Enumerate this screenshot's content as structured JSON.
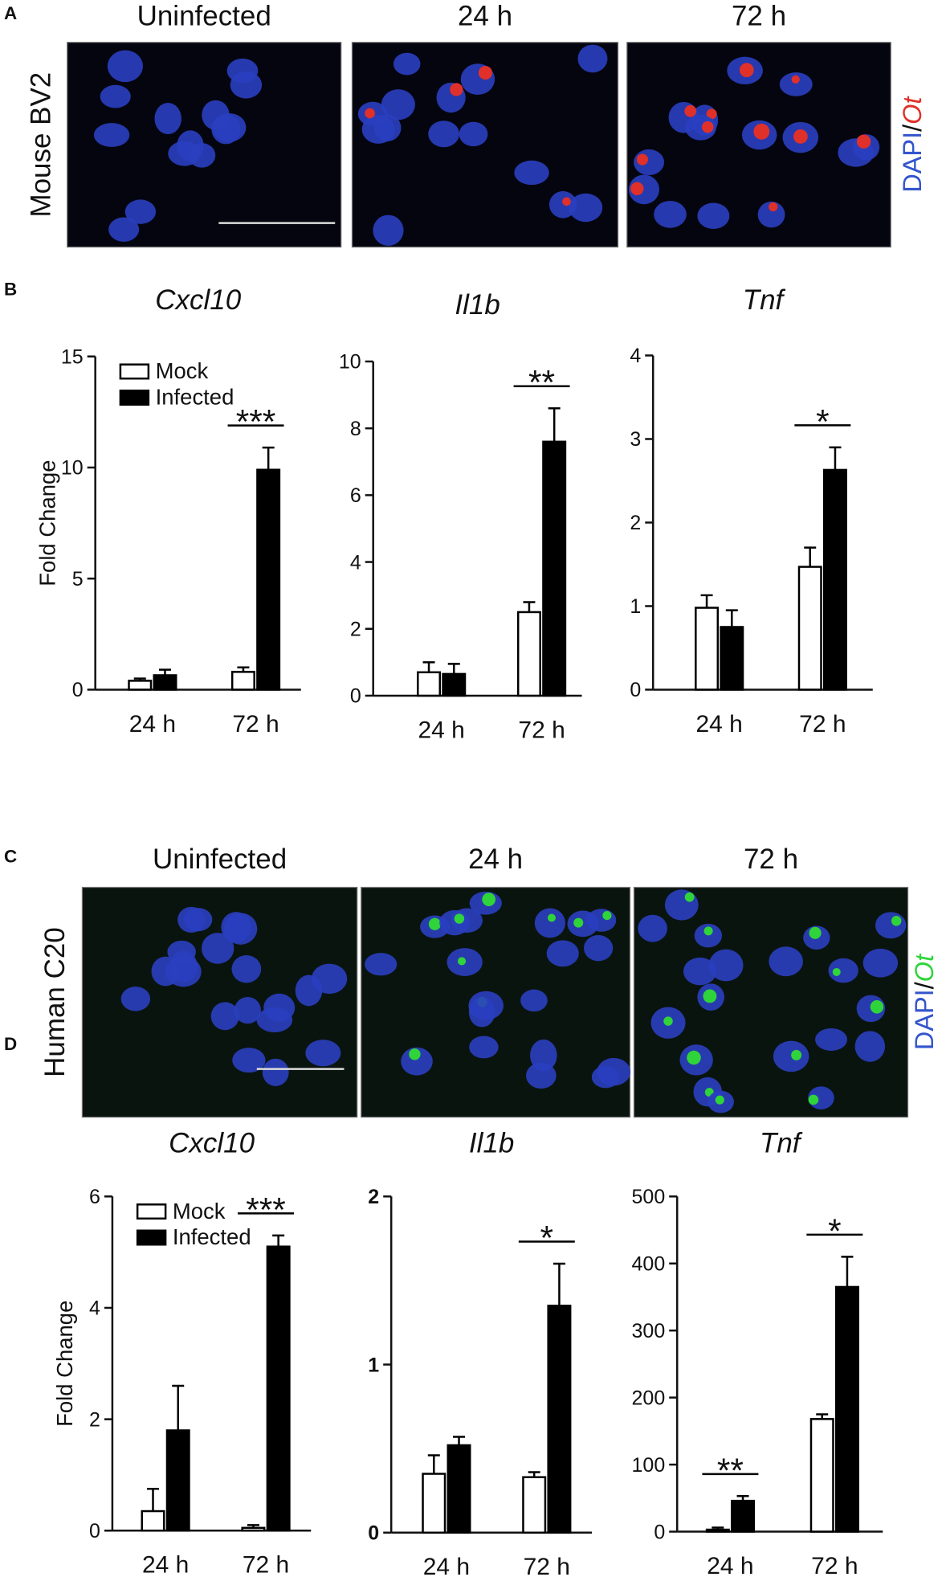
{
  "panels": {
    "A": {
      "letter": "A",
      "columns": [
        "Uninfected",
        "24 h",
        "72 h"
      ],
      "row_label": "Mouse BV2",
      "stain": [
        "DAPI",
        "/",
        "Ot"
      ]
    },
    "B": {
      "letter": "B"
    },
    "C": {
      "letter": "C",
      "columns": [
        "Uninfected",
        "24 h",
        "72 h"
      ],
      "row_label": "Human C20",
      "stain": [
        "DAPI",
        "/",
        "Ot"
      ]
    },
    "D": {
      "letter": "D"
    }
  },
  "chart_data": [
    {
      "type": "bar",
      "title": "Cxcl10",
      "y_label": "Fold Change",
      "categories": [
        "24 h",
        "72 h"
      ],
      "legend": "upper left",
      "series": [
        {
          "name": "Mock",
          "color": "#ffffff",
          "values": [
            0.4,
            0.8
          ],
          "errors": [
            0.1,
            0.2
          ]
        },
        {
          "name": "Infected",
          "color": "#000000",
          "values": [
            0.65,
            9.9
          ],
          "errors": [
            0.25,
            1.0
          ]
        }
      ],
      "ylim": [
        0,
        15
      ],
      "yticks": [
        0,
        5,
        10,
        15
      ],
      "significance": [
        null,
        "***"
      ]
    },
    {
      "type": "bar",
      "title": "Il1b",
      "categories": [
        "24 h",
        "72 h"
      ],
      "series": [
        {
          "color": "#ffffff",
          "values": [
            0.7,
            2.5
          ],
          "errors": [
            0.3,
            0.3
          ]
        },
        {
          "color": "#000000",
          "values": [
            0.65,
            7.6
          ],
          "errors": [
            0.3,
            1.0
          ]
        }
      ],
      "ylim": [
        0,
        10
      ],
      "yticks": [
        0,
        2,
        4,
        6,
        8,
        10
      ],
      "significance": [
        null,
        "**"
      ]
    },
    {
      "type": "bar",
      "title": "Tnf",
      "categories": [
        "24 h",
        "72 h"
      ],
      "series": [
        {
          "color": "#ffffff",
          "values": [
            0.98,
            1.47
          ],
          "errors": [
            0.15,
            0.23
          ]
        },
        {
          "color": "#000000",
          "values": [
            0.75,
            2.63
          ],
          "errors": [
            0.2,
            0.27
          ]
        }
      ],
      "ylim": [
        0,
        4
      ],
      "yticks": [
        0,
        1,
        2,
        3,
        4
      ],
      "significance": [
        null,
        "*"
      ]
    },
    {
      "type": "bar",
      "title": "Cxcl10",
      "y_label": "Fold Change",
      "categories": [
        "24 h",
        "72 h"
      ],
      "legend": "upper left",
      "series": [
        {
          "name": "Mock",
          "color": "#ffffff",
          "values": [
            0.35,
            0.05
          ],
          "errors": [
            0.4,
            0.05
          ]
        },
        {
          "name": "Infected",
          "color": "#000000",
          "values": [
            1.8,
            5.1
          ],
          "errors": [
            0.8,
            0.2
          ]
        }
      ],
      "ylim": [
        0,
        6
      ],
      "yticks": [
        0,
        2,
        4,
        6
      ],
      "significance": [
        null,
        "***"
      ]
    },
    {
      "type": "bar",
      "title": "Il1b",
      "categories": [
        "24 h",
        "72 h"
      ],
      "tick_font_weight": "bold",
      "series": [
        {
          "color": "#ffffff",
          "values": [
            0.35,
            0.33
          ],
          "errors": [
            0.11,
            0.03
          ]
        },
        {
          "color": "#000000",
          "values": [
            0.52,
            1.35
          ],
          "errors": [
            0.05,
            0.25
          ]
        }
      ],
      "ylim": [
        0,
        2
      ],
      "yticks": [
        0,
        1,
        2
      ],
      "significance": [
        null,
        "*"
      ]
    },
    {
      "type": "bar",
      "title": "Tnf",
      "categories": [
        "24 h",
        "72 h"
      ],
      "series": [
        {
          "color": "#ffffff",
          "values": [
            3,
            168
          ],
          "errors": [
            3,
            7
          ]
        },
        {
          "color": "#000000",
          "values": [
            46,
            365
          ],
          "errors": [
            7,
            45
          ]
        }
      ],
      "ylim": [
        0,
        500
      ],
      "yticks": [
        0,
        100,
        200,
        300,
        400,
        500
      ],
      "significance": [
        "**",
        "*"
      ]
    }
  ]
}
